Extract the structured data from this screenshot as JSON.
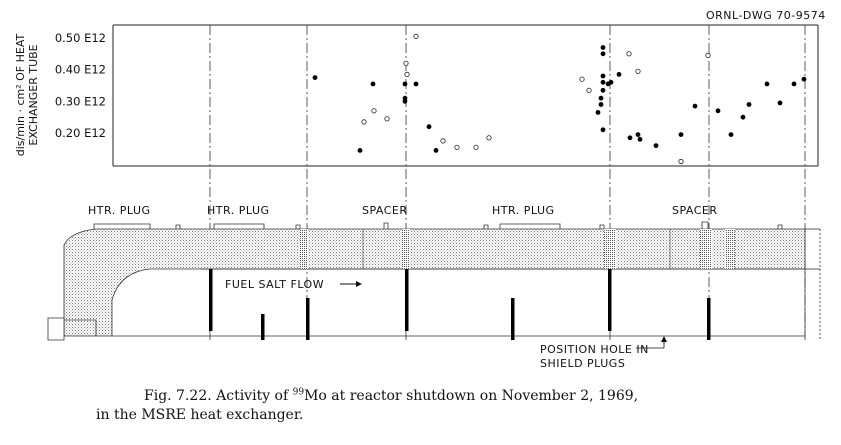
{
  "drawing_number": "ORNL-DWG 70-9574",
  "chart_data": {
    "type": "scatter",
    "title": "",
    "ylabel_line1": "dis/min · cm² OF HEAT",
    "ylabel_line2": "EXCHANGER TUBE",
    "ylim": [
      0.12,
      0.55
    ],
    "yticks": [
      {
        "value": 0.5,
        "label": "0.50 E12"
      },
      {
        "value": 0.4,
        "label": "0.40 E12"
      },
      {
        "value": 0.3,
        "label": "0.30 E12"
      },
      {
        "value": 0.2,
        "label": "0.20 E12"
      }
    ],
    "series": [
      {
        "marker": "filled",
        "points": [
          [
            315,
            0.375
          ],
          [
            360,
            0.145
          ],
          [
            373,
            0.355
          ],
          [
            405,
            0.355
          ],
          [
            405,
            0.31
          ],
          [
            405,
            0.3
          ],
          [
            416,
            0.355
          ],
          [
            429,
            0.22
          ],
          [
            436,
            0.145
          ],
          [
            598,
            0.265
          ],
          [
            601,
            0.29
          ],
          [
            601,
            0.31
          ],
          [
            603,
            0.335
          ],
          [
            603,
            0.36
          ],
          [
            603,
            0.38
          ],
          [
            603,
            0.45
          ],
          [
            603,
            0.47
          ],
          [
            603,
            0.21
          ],
          [
            608,
            0.355
          ],
          [
            611,
            0.36
          ],
          [
            619,
            0.385
          ],
          [
            630,
            0.185
          ],
          [
            638,
            0.195
          ],
          [
            640,
            0.18
          ],
          [
            656,
            0.16
          ],
          [
            681,
            0.195
          ],
          [
            695,
            0.285
          ],
          [
            718,
            0.27
          ],
          [
            731,
            0.195
          ],
          [
            743,
            0.25
          ],
          [
            749,
            0.29
          ],
          [
            767,
            0.355
          ],
          [
            780,
            0.295
          ],
          [
            794,
            0.355
          ],
          [
            804,
            0.37
          ]
        ]
      },
      {
        "marker": "open",
        "points": [
          [
            364,
            0.235
          ],
          [
            374,
            0.27
          ],
          [
            387,
            0.245
          ],
          [
            406,
            0.42
          ],
          [
            407,
            0.385
          ],
          [
            416,
            0.505
          ],
          [
            443,
            0.175
          ],
          [
            457,
            0.155
          ],
          [
            476,
            0.155
          ],
          [
            489,
            0.185
          ],
          [
            582,
            0.37
          ],
          [
            589,
            0.335
          ],
          [
            629,
            0.45
          ],
          [
            638,
            0.395
          ],
          [
            681,
            0.11
          ],
          [
            708,
            0.445
          ]
        ]
      }
    ]
  },
  "component_labels": [
    {
      "text": "HTR. PLUG"
    },
    {
      "text": "HTR. PLUG"
    },
    {
      "text": "SPACER"
    },
    {
      "text": "HTR. PLUG"
    },
    {
      "text": "SPACER"
    }
  ],
  "flow_label": "FUEL SALT FLOW",
  "position_label_line1": "POSITION HOLE IN",
  "position_label_line2": "SHIELD PLUGS",
  "caption": {
    "prefix": "Fig. 7.22.  Activity of ",
    "isotope_mass": "99",
    "suffix": "Mo at reactor shutdown on November 2, 1969,",
    "line2": "in the MSRE heat exchanger."
  }
}
